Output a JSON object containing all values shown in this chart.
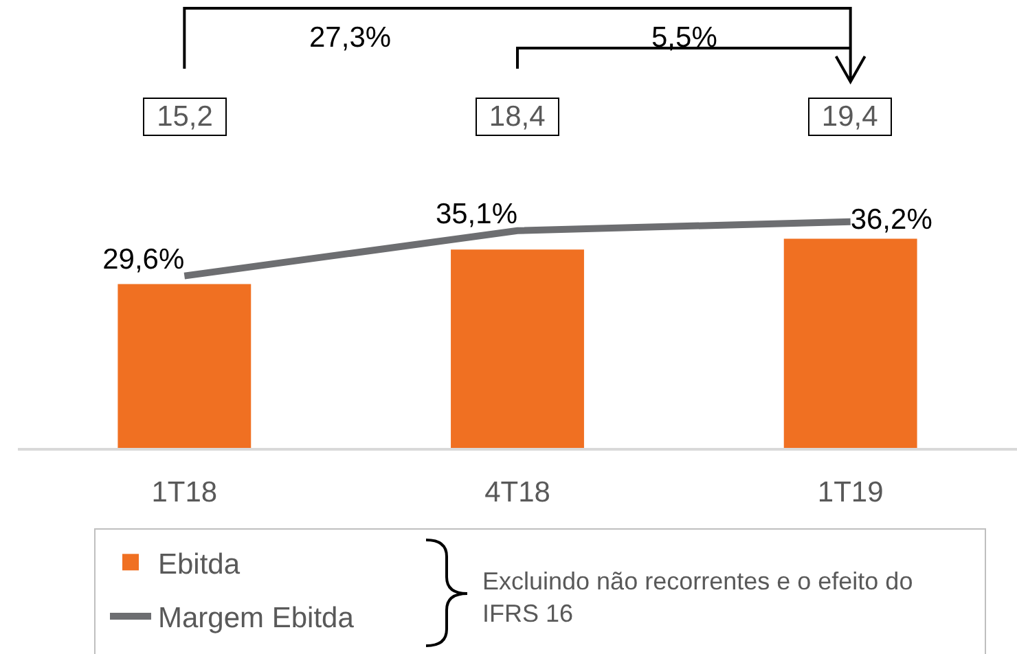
{
  "chart_data": {
    "type": "bar",
    "categories": [
      "1T18",
      "4T18",
      "1T19"
    ],
    "series": [
      {
        "name": "Ebitda",
        "color": "#f07022",
        "values": [
          15.2,
          18.4,
          19.4
        ],
        "value_labels": [
          "15,2",
          "18,4",
          "19,4"
        ]
      },
      {
        "name": "Margem Ebitda",
        "type": "line",
        "axis": "y2",
        "color": "#6d6e71",
        "values": [
          29.6,
          35.1,
          36.2
        ],
        "value_labels": [
          "29,6%",
          "35,1%",
          "36,2%"
        ]
      }
    ],
    "annotations": [
      "27,3%",
      "5,5%",
      "Excluindo não recorrentes e o efeito do\nIFRS 16"
    ],
    "legend": "bottom left",
    "marker": "none"
  }
}
